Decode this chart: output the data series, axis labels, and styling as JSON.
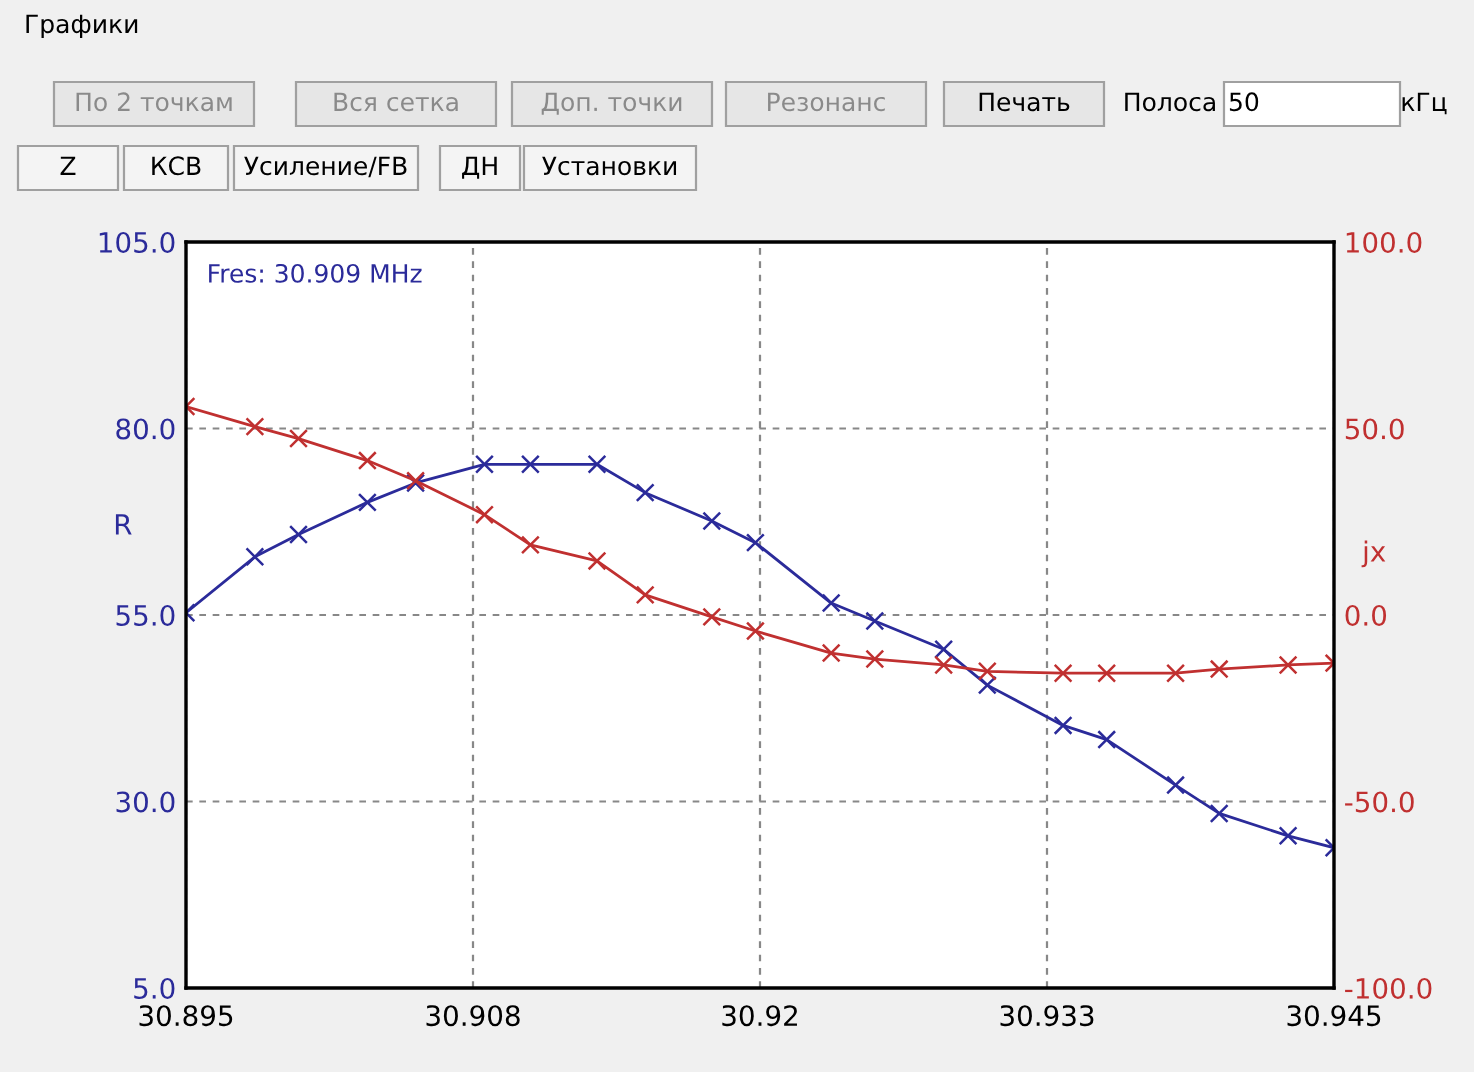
{
  "chart_data": {
    "type": "line",
    "title": "Графики",
    "ylabel": "R",
    "y2label": "jx",
    "annotations": [
      "Fres: 30.909 MHz",
      "По 2 точкам",
      "Вся сетка",
      "Доп. точки",
      "Резонанс",
      "Печать",
      "Полоса",
      "50",
      "кГц",
      "Z",
      "КСВ",
      "Усиление/FB",
      "ДН",
      "Установки"
    ],
    "x": [
      30.895,
      30.898,
      30.8999,
      30.9029,
      30.905,
      30.908,
      30.91,
      30.9129,
      30.915,
      30.9179,
      30.9198,
      30.9231,
      30.925,
      30.928,
      30.9299,
      30.9332,
      30.9351,
      30.9381,
      30.94,
      30.943,
      30.945
    ],
    "series": [
      {
        "color": "#2b2b9a",
        "axis": "y",
        "values": [
          55.3,
          62.8,
          65.8,
          70.1,
          72.7,
          75.2,
          75.2,
          75.2,
          71.4,
          67.6,
          64.7,
          56.6,
          54.2,
          50.4,
          45.6,
          40.2,
          38.3,
          32.2,
          28.4,
          25.4,
          23.8
        ]
      },
      {
        "color": "#c03030",
        "axis": "y2",
        "values": [
          55.9,
          50.5,
          47.3,
          41.4,
          36.0,
          26.9,
          18.8,
          14.5,
          5.4,
          -0.5,
          -4.3,
          -10.2,
          -11.8,
          -13.4,
          -15.1,
          -15.6,
          -15.6,
          -15.6,
          -14.5,
          -13.4,
          -12.9
        ]
      }
    ],
    "xlim": [
      30.895,
      30.945
    ],
    "xticks": [
      30.895,
      {
        "value": 30.9075,
        "label": "30.908"
      },
      30.92,
      {
        "value": 30.9325,
        "label": "30.933"
      },
      30.945
    ],
    "ylim": [
      5,
      105
    ],
    "yticks": [
      {
        "value": 5,
        "label": "5.0"
      },
      {
        "value": 30,
        "label": "30.0"
      },
      {
        "value": 55,
        "label": "55.0"
      },
      {
        "value": 80,
        "label": "80.0"
      },
      {
        "value": 105,
        "label": "105.0"
      }
    ],
    "y2lim": [
      -100,
      100
    ],
    "y2ticks": [
      {
        "value": -100,
        "label": "-100.0"
      },
      {
        "value": -50,
        "label": "-50.0"
      },
      {
        "value": 0,
        "label": "0.0"
      },
      {
        "value": 50,
        "label": "50.0"
      },
      {
        "value": 100,
        "label": "100.0"
      }
    ],
    "grid": true,
    "marker": "cross",
    "line_style": "solid"
  }
}
